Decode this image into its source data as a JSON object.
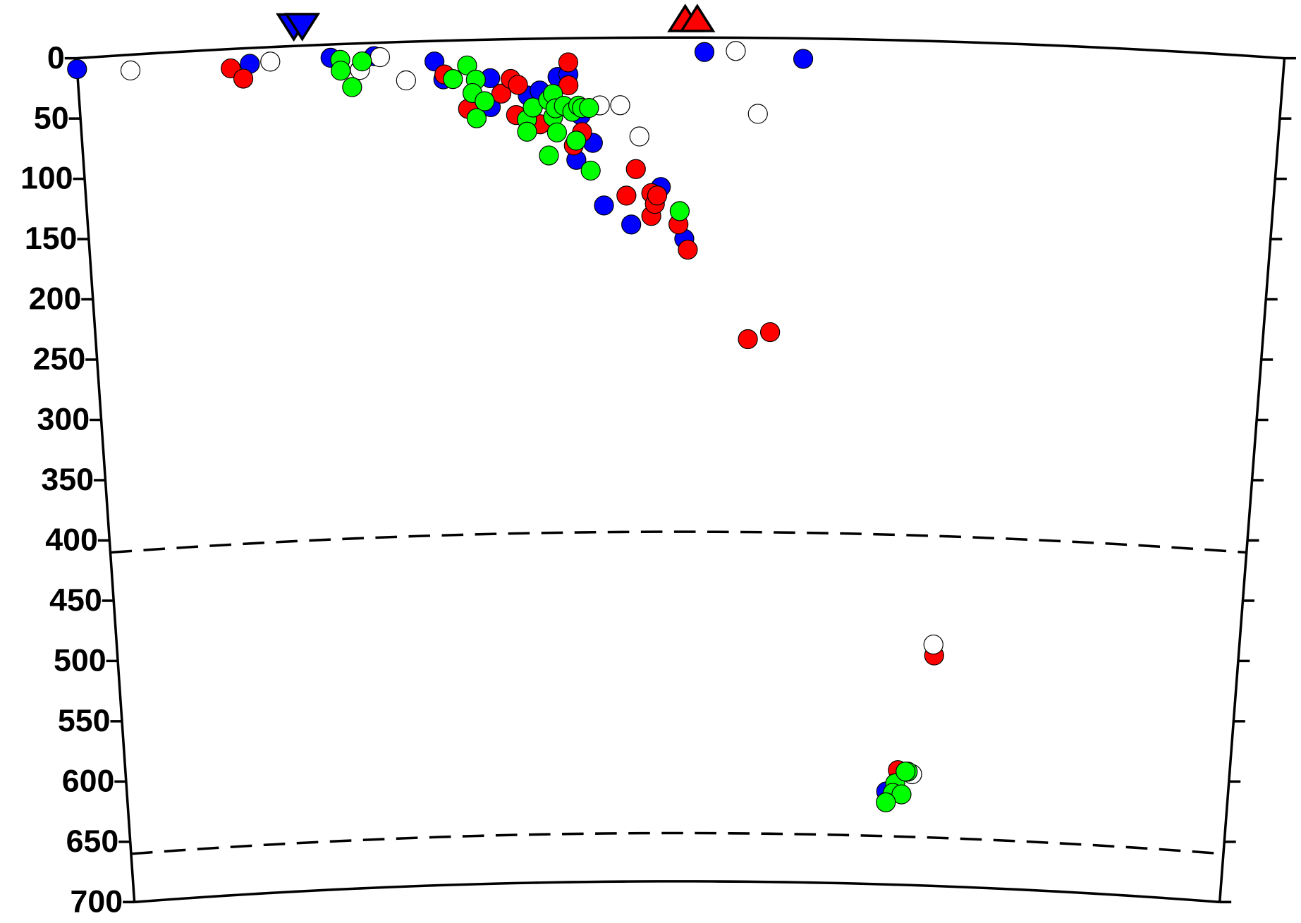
{
  "chart_data": {
    "type": "scatter",
    "ylim": [
      0,
      700
    ],
    "yticks": [
      0,
      50,
      100,
      150,
      200,
      250,
      300,
      350,
      400,
      450,
      500,
      550,
      600,
      650,
      700
    ],
    "xlim": [
      0,
      100
    ],
    "discontinuities": [
      410,
      660
    ],
    "surface_markers": [
      {
        "color": "#0000ff",
        "direction": "down",
        "x": [
          18.0,
          18.7
        ]
      },
      {
        "color": "#ff0000",
        "direction": "up",
        "x": [
          50.4,
          51.4
        ]
      }
    ],
    "series": [
      {
        "color": "#0000ff",
        "x": [
          0,
          14.3,
          21,
          24.6,
          29.6,
          30.3,
          34.2,
          34.2,
          37.3,
          38.3,
          39.8,
          40.7,
          41.7,
          42.7,
          41.3,
          43.6,
          45.9,
          48.4,
          50.4,
          52,
          60.2,
          69
        ],
        "values": [
          9,
          13,
          11,
          11,
          17,
          32,
          32,
          56,
          47,
          43,
          32,
          30,
          64,
          87,
          101,
          139,
          155,
          124,
          167,
          12,
          17,
          623
        ]
      },
      {
        "color": "#ff0000",
        "x": [
          12.7,
          13.7,
          30.4,
          32.3,
          35.1,
          35.9,
          36.5,
          36.3,
          38.3,
          40.7,
          40.7,
          41.1,
          41.1,
          41.8,
          46.3,
          45.5,
          47.6,
          47.6,
          47.9,
          48.1,
          49.9,
          50.7,
          55.9,
          57.8,
          72.9,
          70,
          71.3
        ],
        "values": [
          16,
          25,
          28,
          57,
          45,
          33,
          38,
          63,
          71,
          39,
          20,
          58,
          89,
          78,
          109,
          131,
          129,
          148,
          138,
          131,
          155,
          176,
          250,
          244,
          509,
          605,
          608
        ]
      },
      {
        "color": "#ffffff",
        "x": [
          4.4,
          16,
          25.1,
          23.4,
          27.2,
          43.3,
          45,
          46.6,
          54.6,
          56.5,
          72.8,
          71.3
        ],
        "values": [
          13,
          12,
          12,
          22,
          32,
          56,
          56,
          82,
          11,
          63,
          500,
          608
        ]
      },
      {
        "color": "#00ff00",
        "x": [
          21.8,
          21.8,
          22.7,
          23.6,
          31.1,
          32.3,
          33,
          32.7,
          33,
          33.7,
          37.2,
          37.2,
          37.7,
          39,
          39,
          39.4,
          39.4,
          39.6,
          39.7,
          40.3,
          41,
          41.5,
          41.3,
          41.8,
          42.4,
          42.5,
          50,
          70.9,
          69.8,
          69.6,
          70.4,
          69,
          70.7
        ],
        "values": [
          13,
          22,
          36,
          15,
          32,
          21,
          33,
          44,
          65,
          51,
          67,
          77,
          57,
          97,
          51,
          46,
          65,
          58,
          78,
          56,
          61,
          56,
          85,
          58,
          58,
          110,
          144,
          606,
          616,
          624,
          625,
          632,
          606
        ]
      }
    ]
  }
}
